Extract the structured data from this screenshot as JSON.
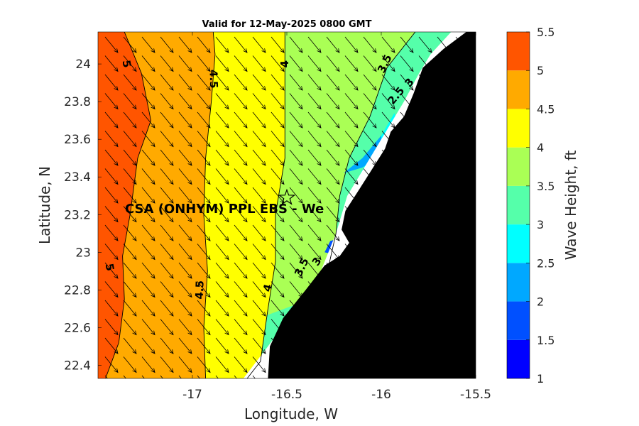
{
  "chart_data": {
    "type": "heatmap",
    "title": "Valid for 12-May-2025 0800 GMT",
    "xlabel": "Longitude, W",
    "ylabel": "Latitude, N",
    "xlim": [
      -17.5,
      -15.5
    ],
    "ylim": [
      22.33,
      24.17
    ],
    "x_ticks": [
      -17,
      -16.5,
      -16,
      -15.5
    ],
    "x_tick_labels": [
      "-17",
      "-16.5",
      "-16",
      "-15.5"
    ],
    "y_ticks": [
      22.4,
      22.6,
      22.8,
      23,
      23.2,
      23.4,
      23.6,
      23.8,
      24
    ],
    "y_tick_labels": [
      "22.4",
      "22.6",
      "22.8",
      "23",
      "23.2",
      "23.4",
      "23.6",
      "23.8",
      "24"
    ],
    "colorbar": {
      "label": "Wave Height, ft",
      "levels": [
        1,
        1.5,
        2,
        2.5,
        3,
        3.5,
        4,
        4.5,
        5,
        5.5
      ],
      "tick_labels": [
        "1",
        "1.5",
        "2",
        "2.5",
        "3",
        "3.5",
        "4",
        "4.5",
        "5",
        "5.5"
      ],
      "colors": [
        "#0000ff",
        "#0050ff",
        "#00a8ff",
        "#00ffff",
        "#55ffaa",
        "#aaff55",
        "#ffff00",
        "#ffaa00",
        "#ff5500"
      ]
    },
    "contour_bands": [
      {
        "level": "5-5.5",
        "color": "#ff5500",
        "west_edge": [
          [
            -17.5,
            24.17
          ],
          [
            -17.5,
            22.33
          ]
        ],
        "east_edge": [
          [
            -17.46,
            22.33
          ],
          [
            -17.39,
            22.52
          ],
          [
            -17.36,
            22.75
          ],
          [
            -17.37,
            22.98
          ],
          [
            -17.33,
            23.2
          ],
          [
            -17.29,
            23.5
          ],
          [
            -17.22,
            23.7
          ],
          [
            -17.27,
            23.95
          ],
          [
            -17.36,
            24.17
          ]
        ]
      },
      {
        "level": "4.5-5",
        "color": "#ffaa00",
        "east_edge": [
          [
            -16.93,
            22.33
          ],
          [
            -16.94,
            22.6
          ],
          [
            -16.92,
            22.9
          ],
          [
            -16.94,
            23.2
          ],
          [
            -16.93,
            23.5
          ],
          [
            -16.9,
            23.8
          ],
          [
            -16.88,
            24.05
          ],
          [
            -16.89,
            24.17
          ]
        ]
      },
      {
        "level": "4-4.5",
        "color": "#ffff00",
        "east_edge": [
          [
            -16.71,
            22.33
          ],
          [
            -16.64,
            22.42
          ],
          [
            -16.6,
            22.7
          ],
          [
            -16.56,
            22.95
          ],
          [
            -16.56,
            23.2
          ],
          [
            -16.51,
            23.5
          ],
          [
            -16.51,
            23.8
          ],
          [
            -16.51,
            24.17
          ]
        ]
      },
      {
        "level": "3.5-4",
        "color": "#aaff55",
        "east_edge": [
          [
            -16.38,
            22.75
          ],
          [
            -16.28,
            22.92
          ],
          [
            -16.24,
            23.1
          ],
          [
            -16.22,
            23.3
          ],
          [
            -16.17,
            23.5
          ],
          [
            -16.06,
            23.72
          ],
          [
            -15.97,
            23.98
          ],
          [
            -15.82,
            24.17
          ]
        ]
      },
      {
        "level": "3-3.5",
        "color": "#55ffaa",
        "east_edge": [
          [
            -16.27,
            22.9
          ],
          [
            -16.2,
            23.05
          ],
          [
            -16.18,
            23.25
          ],
          [
            -16.12,
            23.42
          ],
          [
            -16.01,
            23.6
          ],
          [
            -15.97,
            23.75
          ]
        ]
      },
      {
        "level": "2.5-3",
        "color": "#00ffff"
      },
      {
        "level": "2-2.5",
        "color": "#00a8ff"
      },
      {
        "level": "1.5-2",
        "color": "#0050ff"
      }
    ],
    "contour_labels": [
      {
        "text": "5",
        "lon": -17.35,
        "lat": 24.0,
        "rot": 80
      },
      {
        "text": "5",
        "lon": -17.44,
        "lat": 22.92,
        "rot": 80
      },
      {
        "text": "4.5",
        "lon": -16.89,
        "lat": 23.92,
        "rot": 88
      },
      {
        "text": "4.5",
        "lon": -16.96,
        "lat": 22.8,
        "rot": -88
      },
      {
        "text": "4",
        "lon": -16.51,
        "lat": 24.0,
        "rot": -90
      },
      {
        "text": "4",
        "lon": -16.6,
        "lat": 22.81,
        "rot": -75
      },
      {
        "text": "3.5",
        "lon": -15.98,
        "lat": 24.0,
        "rot": -65
      },
      {
        "text": "3.5",
        "lon": -16.42,
        "lat": 22.92,
        "rot": -65
      },
      {
        "text": "3",
        "lon": -16.34,
        "lat": 22.95,
        "rot": -55
      },
      {
        "text": "2.5",
        "lon": -15.92,
        "lat": 23.83,
        "rot": -50
      },
      {
        "text": "3",
        "lon": -15.85,
        "lat": 23.9,
        "rot": -50
      }
    ],
    "site": {
      "label": "CSA (ONHYM) PPL EBS - We",
      "lon": -16.5,
      "lat": 23.29
    },
    "wave_direction": "arrows point toward south-east",
    "land_color": "#000000",
    "masked_nearshore_color": "#ffffff"
  }
}
